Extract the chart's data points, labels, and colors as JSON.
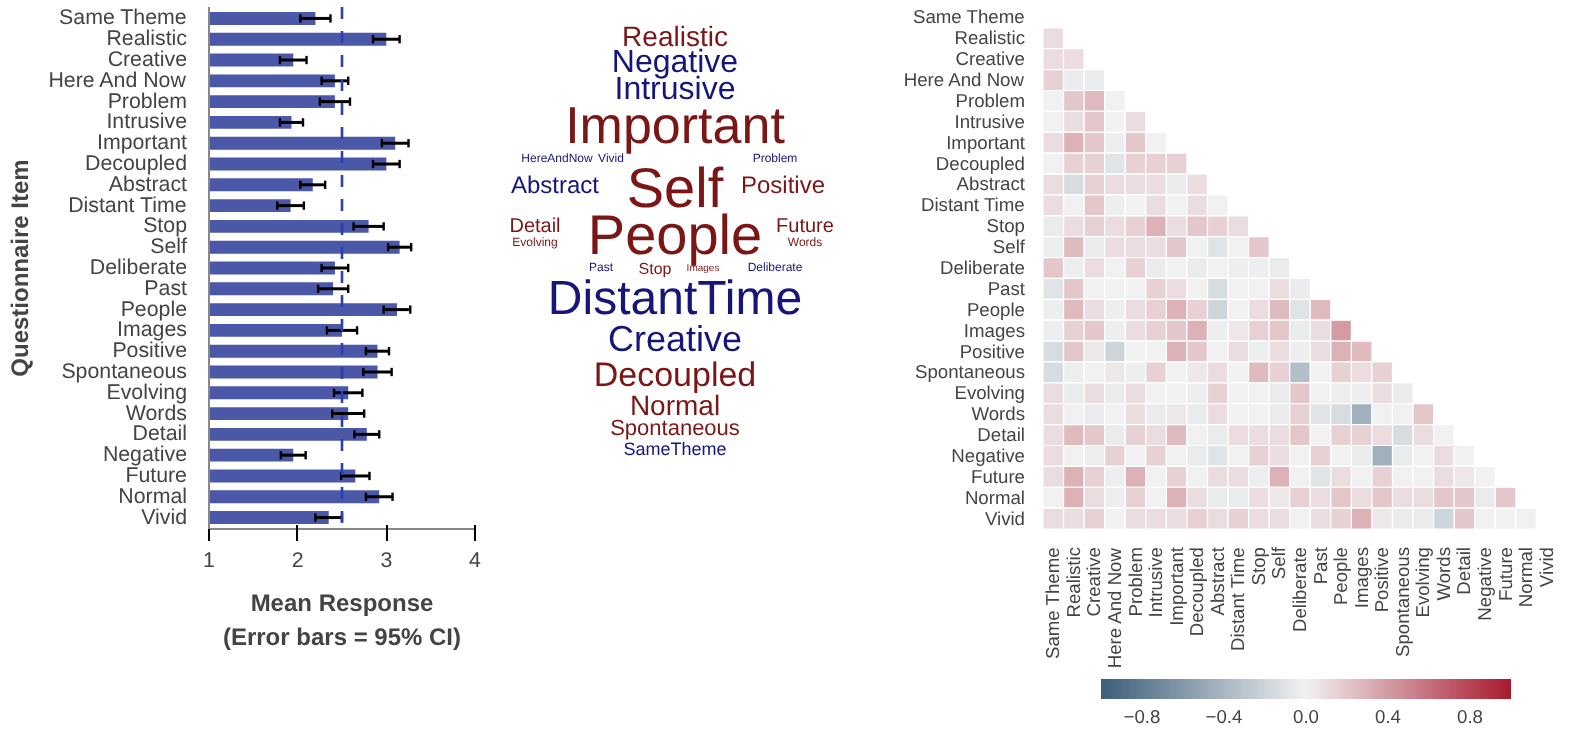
{
  "chart_data": [
    {
      "type": "bar",
      "orientation": "horizontal",
      "xlabel": "Mean Response\n(Error bars = 95% CI)",
      "ylabel": "Questionnaire Item",
      "categories": [
        "Same Theme",
        "Realistic",
        "Creative",
        "Here And Now",
        "Problem",
        "Intrusive",
        "Important",
        "Decoupled",
        "Abstract",
        "Distant Time",
        "Stop",
        "Self",
        "Deliberate",
        "Past",
        "People",
        "Images",
        "Positive",
        "Spontaneous",
        "Evolving",
        "Words",
        "Detail",
        "Negative",
        "Future",
        "Normal",
        "Vivid"
      ],
      "values": [
        2.2,
        3.0,
        1.95,
        2.42,
        2.42,
        1.93,
        3.1,
        3.0,
        2.17,
        1.92,
        2.8,
        3.15,
        2.42,
        2.4,
        3.12,
        2.5,
        2.9,
        2.9,
        2.57,
        2.57,
        2.78,
        1.95,
        2.65,
        2.92,
        2.35
      ],
      "errors": [
        0.17,
        0.15,
        0.15,
        0.15,
        0.17,
        0.13,
        0.15,
        0.15,
        0.14,
        0.15,
        0.17,
        0.13,
        0.15,
        0.17,
        0.15,
        0.17,
        0.13,
        0.16,
        0.16,
        0.18,
        0.14,
        0.14,
        0.16,
        0.15,
        0.15
      ],
      "color": "#4b58a8",
      "xlim": [
        1,
        4
      ],
      "xticks": [
        1,
        2,
        3,
        4
      ],
      "grid": false,
      "ref_lines": [
        {
          "axis": "x",
          "value": 2.5,
          "color": "#2a3fb5",
          "line_style": "dashed"
        }
      ]
    },
    {
      "type": "other",
      "categories": [
        "Realistic",
        "Negative",
        "Intrusive",
        "Important",
        "HereAndNow",
        "Vivid",
        "Self",
        "Problem",
        "Abstract",
        "Positive",
        "Detail",
        "Evolving",
        "People",
        "Future",
        "Words",
        "Past",
        "Stop",
        "Images",
        "Deliberate",
        "DistantTime",
        "Creative",
        "Decoupled",
        "Normal",
        "Spontaneous",
        "SameTheme"
      ],
      "colors": [
        "#7a1616",
        "#16167a",
        "#16167a",
        "#7a1616",
        "#16167a",
        "#16167a",
        "#7a1616",
        "#16167a",
        "#16167a",
        "#7a1616",
        "#7a1616",
        "#7a1616",
        "#7a1616",
        "#7a1616",
        "#7a1616",
        "#16167a",
        "#7a1616",
        "#7a1616",
        "#16167a",
        "#16167a",
        "#16167a",
        "#7a1616",
        "#7a1616",
        "#7a1616",
        "#16167a"
      ]
    },
    {
      "type": "heatmap",
      "categories": [
        "Same Theme",
        "Realistic",
        "Creative",
        "Here And Now",
        "Problem",
        "Intrusive",
        "Important",
        "Decoupled",
        "Abstract",
        "Distant Time",
        "Stop",
        "Self",
        "Deliberate",
        "Past",
        "People",
        "Images",
        "Positive",
        "Spontaneous",
        "Evolving",
        "Words",
        "Detail",
        "Negative",
        "Future",
        "Normal",
        "Vivid"
      ],
      "y_categories": [
        "Same Theme",
        "Realistic",
        "Creative",
        "Here And Now",
        "Problem",
        "Intrusive",
        "Important",
        "Decoupled",
        "Abstract",
        "Distant Time",
        "Stop",
        "Self",
        "Deliberate",
        "Past",
        "People",
        "Images",
        "Positive",
        "Spontaneous",
        "Evolving",
        "Words",
        "Detail",
        "Negative",
        "Future",
        "Normal",
        "Vivid"
      ],
      "clim": [
        -1,
        1
      ],
      "cticks": [
        {
          "value": -0.8,
          "label": "−0.8"
        },
        {
          "value": -0.4,
          "label": "−0.4"
        },
        {
          "value": 0,
          "label": "0.0"
        },
        {
          "value": 0.4,
          "label": "0.4"
        },
        {
          "value": 0.8,
          "label": "0.8"
        }
      ],
      "cells": [
        [
          null,
          null,
          null,
          null,
          null,
          null,
          null,
          null,
          null,
          null,
          null,
          null,
          null,
          null,
          null,
          null,
          null,
          null,
          null,
          null,
          null,
          null,
          null,
          null,
          null
        ],
        [
          0.1,
          null,
          null,
          null,
          null,
          null,
          null,
          null,
          null,
          null,
          null,
          null,
          null,
          null,
          null,
          null,
          null,
          null,
          null,
          null,
          null,
          null,
          null,
          null,
          null
        ],
        [
          0.1,
          0.1,
          null,
          null,
          null,
          null,
          null,
          null,
          null,
          null,
          null,
          null,
          null,
          null,
          null,
          null,
          null,
          null,
          null,
          null,
          null,
          null,
          null,
          null,
          null
        ],
        [
          0.15,
          -0.05,
          -0.05,
          null,
          null,
          null,
          null,
          null,
          null,
          null,
          null,
          null,
          null,
          null,
          null,
          null,
          null,
          null,
          null,
          null,
          null,
          null,
          null,
          null,
          null
        ],
        [
          0.0,
          0.2,
          0.25,
          0.0,
          null,
          null,
          null,
          null,
          null,
          null,
          null,
          null,
          null,
          null,
          null,
          null,
          null,
          null,
          null,
          null,
          null,
          null,
          null,
          null,
          null
        ],
        [
          0.0,
          0.1,
          0.2,
          0.0,
          0.1,
          null,
          null,
          null,
          null,
          null,
          null,
          null,
          null,
          null,
          null,
          null,
          null,
          null,
          null,
          null,
          null,
          null,
          null,
          null,
          null
        ],
        [
          0.1,
          0.3,
          0.2,
          -0.03,
          0.2,
          0.0,
          null,
          null,
          null,
          null,
          null,
          null,
          null,
          null,
          null,
          null,
          null,
          null,
          null,
          null,
          null,
          null,
          null,
          null,
          null
        ],
        [
          0.0,
          0.15,
          0.15,
          -0.1,
          0.15,
          0.15,
          0.15,
          null,
          null,
          null,
          null,
          null,
          null,
          null,
          null,
          null,
          null,
          null,
          null,
          null,
          null,
          null,
          null,
          null,
          null
        ],
        [
          0.1,
          -0.15,
          0.15,
          0.1,
          0.1,
          0.1,
          -0.05,
          0.1,
          null,
          null,
          null,
          null,
          null,
          null,
          null,
          null,
          null,
          null,
          null,
          null,
          null,
          null,
          null,
          null,
          null
        ],
        [
          0.1,
          0.0,
          0.2,
          -0.03,
          0.0,
          0.1,
          0.0,
          0.1,
          0.0,
          null,
          null,
          null,
          null,
          null,
          null,
          null,
          null,
          null,
          null,
          null,
          null,
          null,
          null,
          null,
          null
        ],
        [
          -0.05,
          0.1,
          0.15,
          0.1,
          0.15,
          0.3,
          0.1,
          0.2,
          0.15,
          0.1,
          null,
          null,
          null,
          null,
          null,
          null,
          null,
          null,
          null,
          null,
          null,
          null,
          null,
          null,
          null
        ],
        [
          -0.03,
          0.25,
          -0.05,
          0.1,
          0.1,
          0.1,
          0.2,
          0.0,
          -0.1,
          0.0,
          0.2,
          null,
          null,
          null,
          null,
          null,
          null,
          null,
          null,
          null,
          null,
          null,
          null,
          null,
          null
        ],
        [
          0.2,
          -0.03,
          0.1,
          0.0,
          0.15,
          -0.05,
          0.0,
          -0.05,
          0.0,
          -0.03,
          -0.03,
          -0.05,
          null,
          null,
          null,
          null,
          null,
          null,
          null,
          null,
          null,
          null,
          null,
          null,
          null
        ],
        [
          -0.1,
          0.2,
          0.0,
          0.0,
          0.0,
          0.15,
          0.1,
          0.0,
          -0.15,
          0.0,
          0.0,
          0.1,
          -0.05,
          null,
          null,
          null,
          null,
          null,
          null,
          null,
          null,
          null,
          null,
          null,
          null
        ],
        [
          -0.03,
          0.25,
          0.1,
          -0.03,
          0.1,
          0.15,
          0.3,
          0.15,
          -0.2,
          0.0,
          0.1,
          0.25,
          -0.1,
          0.25,
          null,
          null,
          null,
          null,
          null,
          null,
          null,
          null,
          null,
          null,
          null
        ],
        [
          -0.03,
          0.15,
          0.2,
          -0.03,
          0.1,
          0.15,
          0.2,
          0.3,
          -0.03,
          0.05,
          0.15,
          0.2,
          -0.05,
          0.1,
          0.4,
          null,
          null,
          null,
          null,
          null,
          null,
          null,
          null,
          null,
          null
        ],
        [
          -0.15,
          0.2,
          0.05,
          -0.2,
          0.0,
          0.0,
          0.3,
          0.2,
          0.0,
          0.1,
          -0.03,
          0.1,
          -0.03,
          0.1,
          0.3,
          0.25,
          null,
          null,
          null,
          null,
          null,
          null,
          null,
          null,
          null
        ],
        [
          -0.15,
          -0.03,
          0.0,
          0.05,
          -0.03,
          0.15,
          0.0,
          0.05,
          0.1,
          0.0,
          0.25,
          0.15,
          -0.35,
          0.0,
          0.15,
          0.1,
          0.15,
          null,
          null,
          null,
          null,
          null,
          null,
          null,
          null
        ],
        [
          0.1,
          -0.05,
          0.1,
          -0.05,
          0.1,
          0.0,
          0.0,
          -0.03,
          0.15,
          0.0,
          0.0,
          -0.05,
          0.2,
          0.0,
          -0.03,
          -0.03,
          0.1,
          -0.05,
          null,
          null,
          null,
          null,
          null,
          null,
          null
        ],
        [
          0.1,
          0.0,
          -0.05,
          0.0,
          0.1,
          -0.05,
          0.05,
          -0.05,
          0.1,
          0.0,
          0.0,
          -0.05,
          0.15,
          -0.1,
          -0.15,
          -0.45,
          0.0,
          0.0,
          0.2,
          null,
          null,
          null,
          null,
          null,
          null
        ],
        [
          0.1,
          0.25,
          0.2,
          -0.05,
          0.15,
          0.1,
          0.25,
          0.0,
          -0.05,
          0.1,
          0.1,
          0.1,
          0.2,
          0.0,
          0.15,
          0.15,
          0.1,
          -0.15,
          0.1,
          0.0,
          null,
          null,
          null,
          null,
          null
        ],
        [
          0.1,
          0.0,
          -0.03,
          0.15,
          0.0,
          0.15,
          0.0,
          -0.05,
          -0.1,
          0.0,
          0.15,
          0.1,
          0.0,
          0.15,
          0.0,
          -0.05,
          -0.45,
          -0.05,
          0.0,
          0.1,
          0.0,
          null,
          null,
          null,
          null
        ],
        [
          0.1,
          0.3,
          0.15,
          -0.03,
          0.3,
          0.0,
          0.15,
          0.0,
          0.1,
          0.1,
          -0.03,
          0.3,
          0.0,
          -0.1,
          0.1,
          0.0,
          0.15,
          0.0,
          0.0,
          0.1,
          0.05,
          0.0,
          null,
          null,
          null
        ],
        [
          0.0,
          0.3,
          0.1,
          -0.03,
          0.15,
          0.0,
          0.3,
          0.1,
          -0.05,
          -0.05,
          0.1,
          0.05,
          0.15,
          0.1,
          0.2,
          0.1,
          0.2,
          0.1,
          0.1,
          0.2,
          0.2,
          -0.05,
          0.2,
          null,
          null
        ],
        [
          0.1,
          0.1,
          0.15,
          0.0,
          0.1,
          0.1,
          0.1,
          0.15,
          0.1,
          0.15,
          0.1,
          0.1,
          0.0,
          0.1,
          0.15,
          0.3,
          0.05,
          -0.05,
          -0.05,
          -0.2,
          0.2,
          0.0,
          0.0,
          0.0,
          null
        ]
      ]
    }
  ]
}
